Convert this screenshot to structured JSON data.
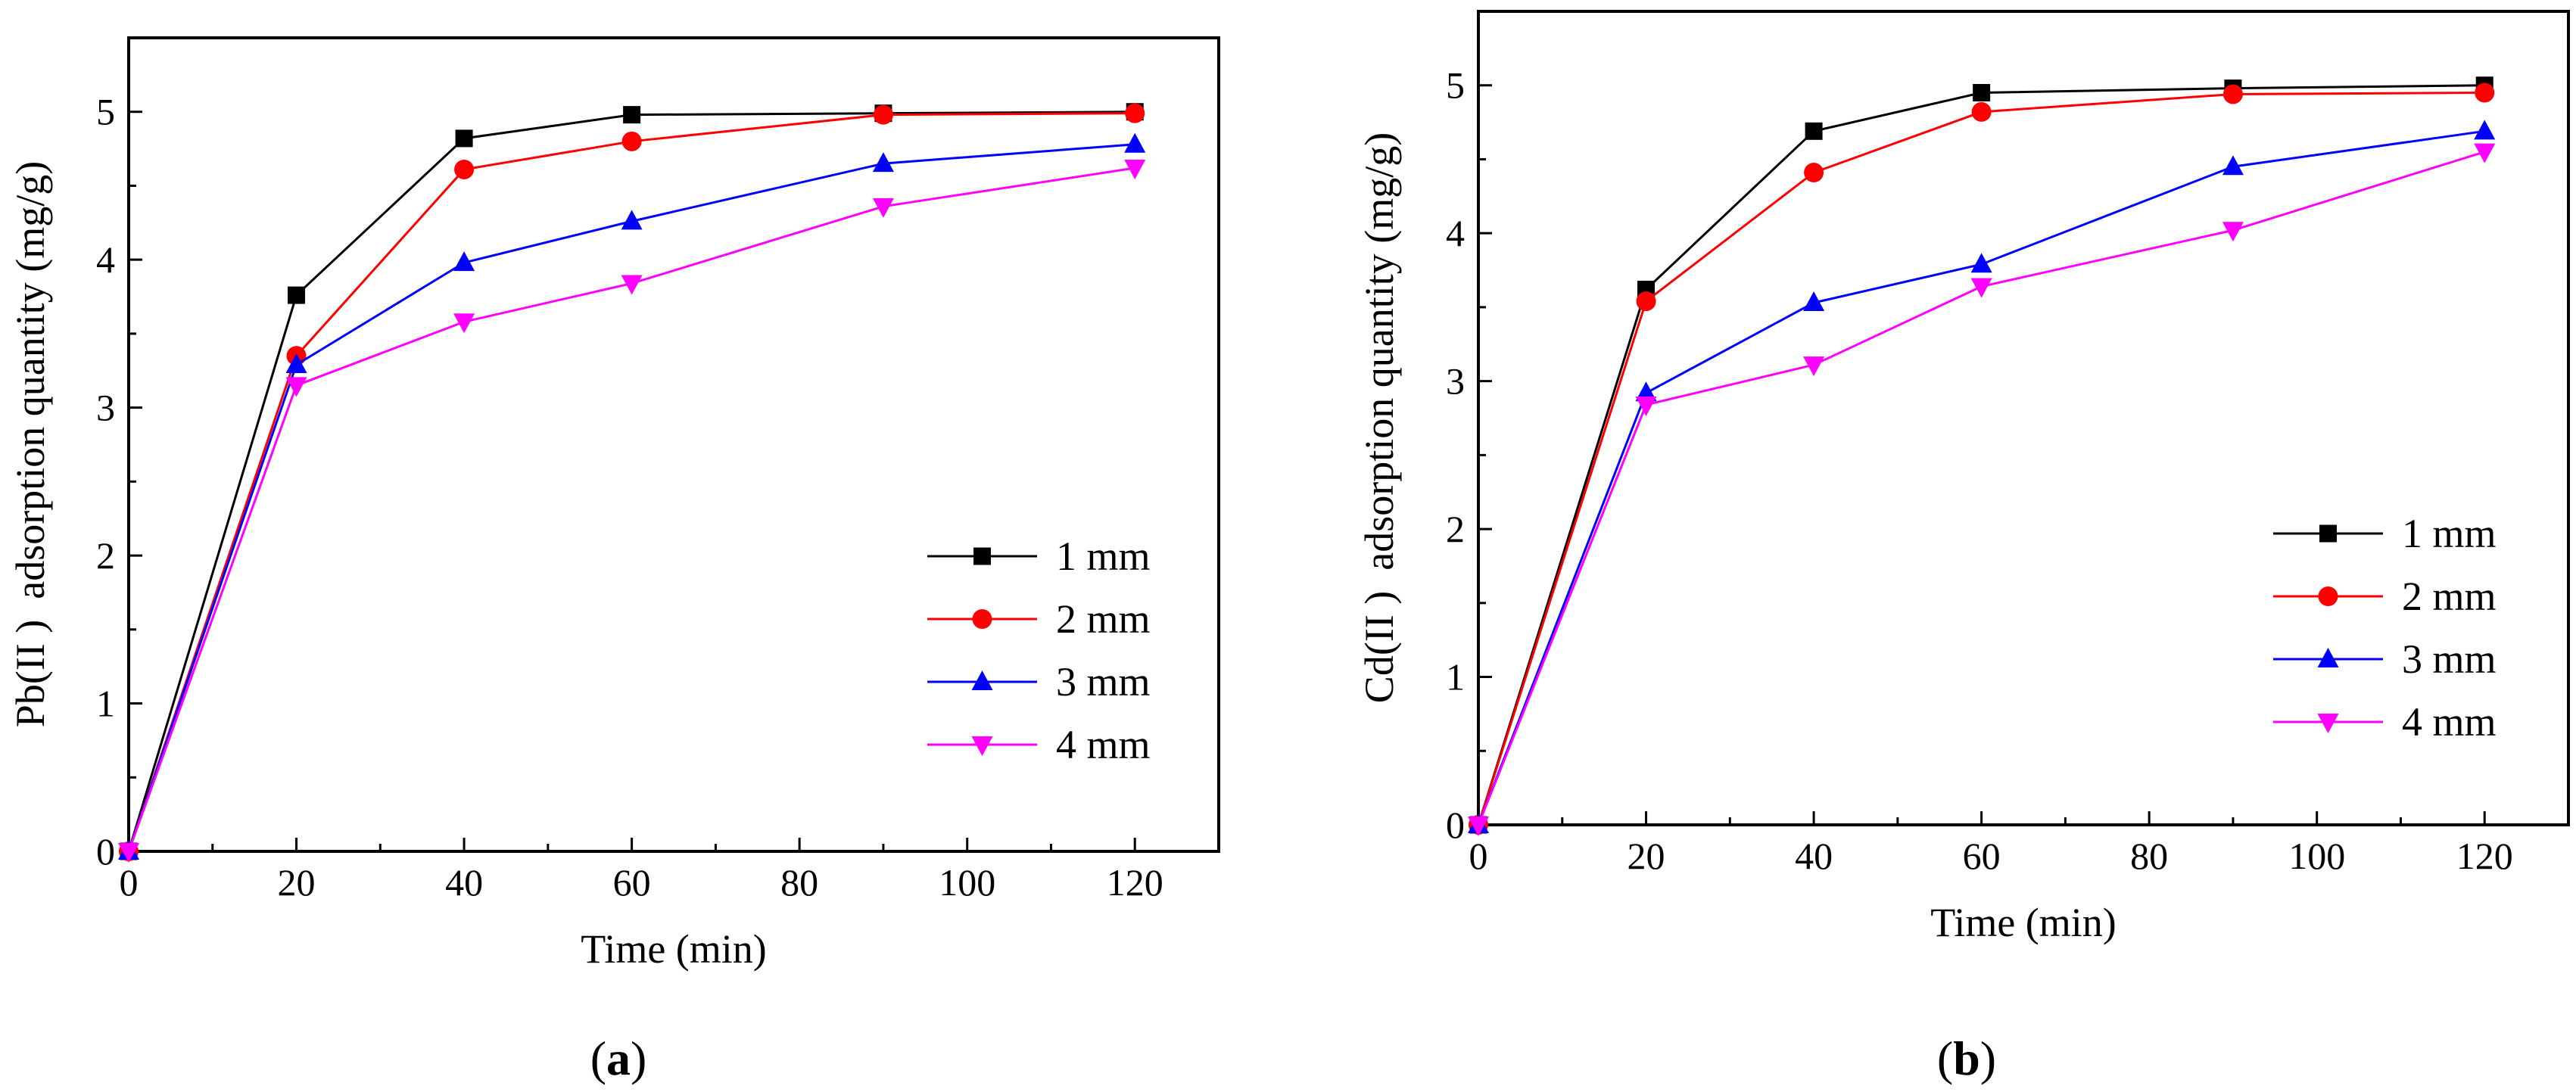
{
  "chart_data": [
    {
      "id": "a",
      "type": "line",
      "panel_label": "a",
      "xlabel": "Time (min)",
      "ylabel": "Pb(II )  adsorption quantity (mg/g)",
      "xlim": [
        0,
        130
      ],
      "ylim": [
        0,
        5.5
      ],
      "xticks": [
        0,
        20,
        40,
        60,
        80,
        100,
        120
      ],
      "yticks": [
        0,
        1,
        2,
        3,
        4,
        5
      ],
      "legend_position": "bottom-right",
      "x": [
        0,
        20,
        40,
        60,
        90,
        120
      ],
      "series": [
        {
          "name": "1 mm",
          "color": "#000000",
          "marker": "square",
          "values": [
            0,
            3.76,
            4.82,
            4.98,
            4.99,
            5.0
          ]
        },
        {
          "name": "2 mm",
          "color": "#ff0000",
          "marker": "circle",
          "values": [
            0,
            3.35,
            4.61,
            4.8,
            4.98,
            4.99
          ]
        },
        {
          "name": "3 mm",
          "color": "#0000ff",
          "marker": "triangle-up",
          "values": [
            0,
            3.29,
            3.98,
            4.26,
            4.65,
            4.78
          ]
        },
        {
          "name": "4 mm",
          "color": "#ff00ff",
          "marker": "triangle-down",
          "values": [
            0,
            3.15,
            3.58,
            3.84,
            4.36,
            4.62
          ]
        }
      ]
    },
    {
      "id": "b",
      "type": "line",
      "panel_label": "b",
      "xlabel": "Time (min)",
      "ylabel": "Cd(II )  adsorption quantity (mg/g)",
      "xlim": [
        0,
        130
      ],
      "ylim": [
        0,
        5.5
      ],
      "xticks": [
        0,
        20,
        40,
        60,
        80,
        100,
        120
      ],
      "yticks": [
        0,
        1,
        2,
        3,
        4,
        5
      ],
      "legend_position": "bottom-right",
      "x": [
        0,
        20,
        40,
        60,
        90,
        120
      ],
      "series": [
        {
          "name": "1 mm",
          "color": "#000000",
          "marker": "square",
          "values": [
            0,
            3.62,
            4.69,
            4.95,
            4.98,
            5.0
          ]
        },
        {
          "name": "2 mm",
          "color": "#ff0000",
          "marker": "circle",
          "values": [
            0,
            3.54,
            4.41,
            4.82,
            4.94,
            4.95
          ]
        },
        {
          "name": "3 mm",
          "color": "#0000ff",
          "marker": "triangle-up",
          "values": [
            0,
            2.92,
            3.53,
            3.79,
            4.45,
            4.69
          ]
        },
        {
          "name": "4 mm",
          "color": "#ff00ff",
          "marker": "triangle-down",
          "values": [
            0,
            2.84,
            3.11,
            3.64,
            4.02,
            4.55
          ]
        }
      ]
    }
  ]
}
